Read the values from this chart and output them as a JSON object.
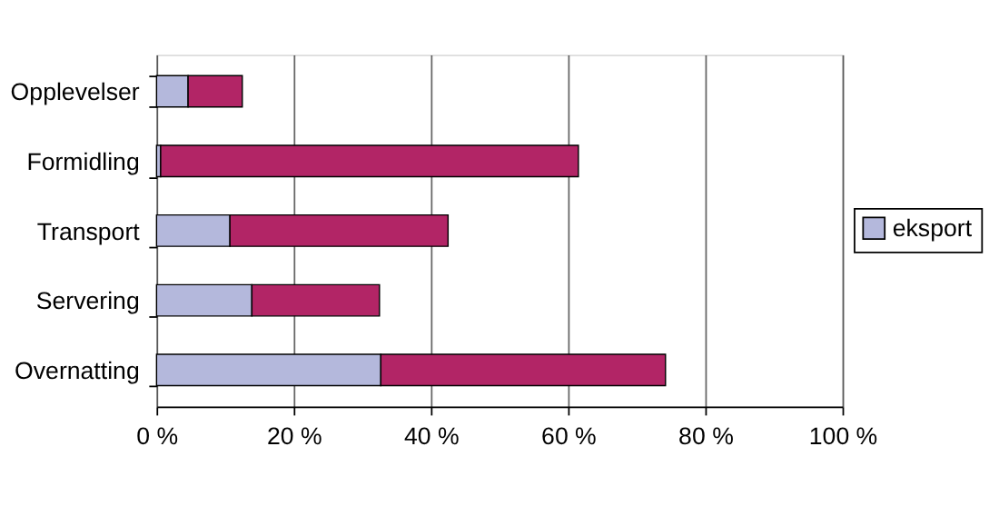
{
  "chart_data": {
    "type": "bar",
    "orientation": "horizontal",
    "stacked": true,
    "categories": [
      "Opplevelser",
      "Formidling",
      "Transport",
      "Servering",
      "Overnatting"
    ],
    "series": [
      {
        "name": "eksport",
        "color": "#b4b8dc",
        "values": [
          4.6,
          0.6,
          10.7,
          13.9,
          32.7
        ]
      },
      {
        "color": "#b22566",
        "values": [
          7.9,
          60.9,
          31.8,
          18.6,
          41.5
        ]
      }
    ],
    "xlim": [
      0,
      100
    ],
    "xticks": [
      {
        "value": 0,
        "label": "0 %"
      },
      {
        "value": 20,
        "label": "20 %"
      },
      {
        "value": 40,
        "label": "40 %"
      },
      {
        "value": 60,
        "label": "60 %"
      },
      {
        "value": 80,
        "label": "80 %"
      },
      {
        "value": 100,
        "label": "100 %"
      }
    ],
    "grid": "x",
    "legend": "right"
  }
}
